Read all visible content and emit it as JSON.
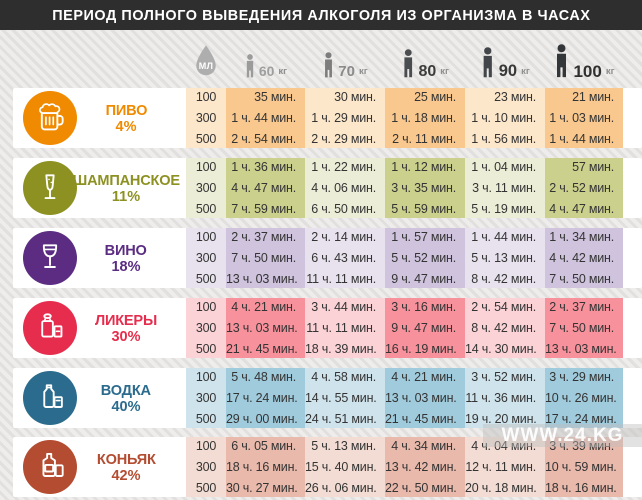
{
  "watermark": "WWW.24.KG",
  "chart_data": {
    "type": "table",
    "title": "ПЕРИОД ПОЛНОГО ВЫВЕДЕНИЯ АЛКОГОЛЯ ИЗ ОРГАНИЗМА В ЧАСАХ",
    "header": {
      "ml_label": "МЛ",
      "ml_icon": "droplet-icon",
      "weights": [
        {
          "value": "60",
          "unit": "кг",
          "icon": "person-icon",
          "icon_color": "#9b9b9b",
          "label_color": "#9e9e9e"
        },
        {
          "value": "70",
          "unit": "кг",
          "icon": "person-icon",
          "icon_color": "#7d7d7d",
          "label_color": "#8a8a8a"
        },
        {
          "value": "80",
          "unit": "кг",
          "icon": "person-icon",
          "icon_color": "#4a4d50",
          "label_color": "#3c3c3c"
        },
        {
          "value": "90",
          "unit": "кг",
          "icon": "person-icon",
          "icon_color": "#42454a",
          "label_color": "#383838"
        },
        {
          "value": "100",
          "unit": "кг",
          "icon": "person-icon",
          "icon_color": "#34373a",
          "label_color": "#303030"
        }
      ]
    },
    "volumes": [
      "100",
      "300",
      "500"
    ],
    "drinks": [
      {
        "key": "beer",
        "name": "ПИВО",
        "percent": "4%",
        "icon": "beer-mug-icon",
        "color": "#f08a00",
        "cell_light": "#fce7cb",
        "cell_dark": "#f9c88e",
        "times": [
          [
            "35 мин.",
            "1 ч. 44 мин.",
            "2 ч. 54 мин."
          ],
          [
            "30 мин.",
            "1 ч. 29 мин.",
            "2 ч. 29 мин."
          ],
          [
            "25 мин.",
            "1 ч. 18 мин.",
            "2 ч. 11 мин."
          ],
          [
            "23 мин.",
            "1 ч. 10 мин.",
            "1 ч. 56 мин."
          ],
          [
            "21 мин.",
            "1 ч. 03 мин.",
            "1 ч. 44 мин."
          ]
        ]
      },
      {
        "key": "champagne",
        "name": "ШАМПАНСКОЕ",
        "percent": "11%",
        "icon": "champagne-glass-icon",
        "color": "#8d9122",
        "cell_light": "#ecedd7",
        "cell_dark": "#cbd08d",
        "times": [
          [
            "1 ч. 36 мин.",
            "4 ч. 47 мин.",
            "7 ч. 59 мин."
          ],
          [
            "1 ч. 22 мин.",
            "4 ч. 06 мин.",
            "6 ч. 50 мин."
          ],
          [
            "1 ч. 12 мин.",
            "3 ч. 35 мин.",
            "5 ч. 59 мин."
          ],
          [
            "1 ч. 04 мин.",
            "3 ч. 11 мин.",
            "5 ч. 19 мин."
          ],
          [
            "57 мин.",
            "2 ч. 52 мин.",
            "4 ч. 47 мин."
          ]
        ]
      },
      {
        "key": "wine",
        "name": "ВИНО",
        "percent": "18%",
        "icon": "wine-glass-icon",
        "color": "#5b2c82",
        "cell_light": "#e8e2ee",
        "cell_dark": "#cfc3dd",
        "times": [
          [
            "2 ч. 37 мин.",
            "7 ч. 50 мин.",
            "13 ч. 03 мин."
          ],
          [
            "2 ч. 14 мин.",
            "6 ч. 43 мин.",
            "11 ч. 11 мин."
          ],
          [
            "1 ч. 57 мин.",
            "5 ч. 52 мин.",
            "9 ч. 47 мин."
          ],
          [
            "1 ч. 44 мин.",
            "5 ч. 13 мин.",
            "8 ч. 42 мин."
          ],
          [
            "1 ч. 34 мин.",
            "4 ч. 42 мин.",
            "7 ч. 50 мин."
          ]
        ]
      },
      {
        "key": "liqueur",
        "name": "ЛИКЕРЫ",
        "percent": "30%",
        "icon": "liqueur-bottle-icon",
        "color": "#e62d4d",
        "cell_light": "#fbd2d6",
        "cell_dark": "#f7929d",
        "times": [
          [
            "4 ч. 21 мин.",
            "13 ч. 03 мин.",
            "21 ч. 45 мин."
          ],
          [
            "3 ч. 44 мин.",
            "11 ч. 11 мин.",
            "18 ч. 39 мин."
          ],
          [
            "3 ч. 16 мин.",
            "9 ч. 47 мин.",
            "16 ч. 19 мин."
          ],
          [
            "2 ч. 54 мин.",
            "8 ч. 42 мин.",
            "14 ч. 30 мин."
          ],
          [
            "2 ч. 37 мин.",
            "7 ч. 50 мин.",
            "13 ч. 03 мин."
          ]
        ]
      },
      {
        "key": "vodka",
        "name": "ВОДКА",
        "percent": "40%",
        "icon": "vodka-bottle-icon",
        "color": "#2b6b8d",
        "cell_light": "#cfe3ec",
        "cell_dark": "#a0cbdc",
        "times": [
          [
            "5 ч. 48 мин.",
            "17 ч. 24 мин.",
            "29 ч. 00 мин."
          ],
          [
            "4 ч. 58 мин.",
            "14 ч. 55 мин.",
            "24 ч. 51 мин."
          ],
          [
            "4 ч. 21 мин.",
            "13 ч. 03 мин.",
            "21 ч. 45 мин."
          ],
          [
            "3 ч. 52 мин.",
            "11 ч. 36 мин.",
            "19 ч. 20 мин."
          ],
          [
            "3 ч. 29 мин.",
            "10 ч. 26 мин.",
            "17 ч. 24 мин."
          ]
        ]
      },
      {
        "key": "cognac",
        "name": "КОНЬЯК",
        "percent": "42%",
        "icon": "cognac-bottle-icon",
        "color": "#b34c31",
        "cell_light": "#f3dcd3",
        "cell_dark": "#e9b9ab",
        "times": [
          [
            "6 ч. 05 мин.",
            "18 ч. 16 мин.",
            "30 ч. 27 мин."
          ],
          [
            "5 ч. 13 мин.",
            "15 ч. 40 мин.",
            "26 ч. 06 мин."
          ],
          [
            "4 ч. 34 мин.",
            "13 ч. 42 мин.",
            "22 ч. 50 мин."
          ],
          [
            "4 ч. 04 мин.",
            "12 ч. 11 мин.",
            "20 ч. 18 мин."
          ],
          [
            "3 ч. 39 мин.",
            "10 ч. 59 мин.",
            "18 ч. 16 мин."
          ]
        ]
      }
    ]
  }
}
